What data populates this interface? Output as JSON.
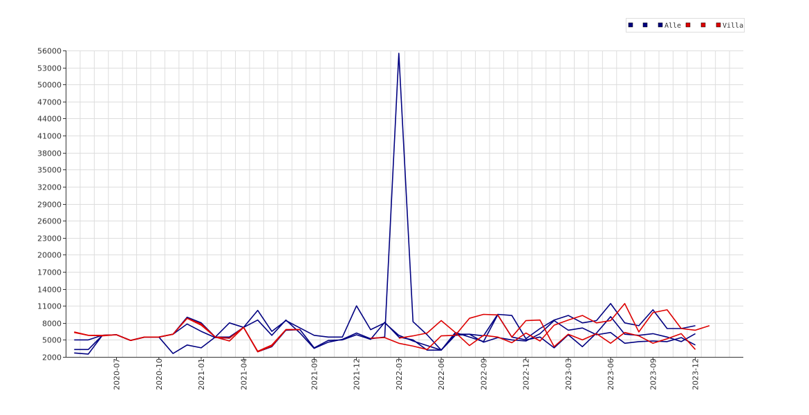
{
  "chart_data": {
    "type": "line",
    "title": "",
    "xlabel": "",
    "ylabel": "",
    "ylim": [
      2000,
      56000
    ],
    "y_ticks": [
      2000,
      5000,
      8000,
      11000,
      14000,
      17000,
      20000,
      23000,
      26000,
      29000,
      32000,
      35000,
      38000,
      41000,
      44000,
      47000,
      50000,
      53000,
      56000
    ],
    "x_start": "2020-04",
    "x_end": "2024-03",
    "x_tick_labels": [
      "2020-07",
      "2020-10",
      "2021-01",
      "2021-04",
      "2021-09",
      "2021-12",
      "2022-03",
      "2022-06",
      "2022-09",
      "2022-12",
      "2023-03",
      "2023-06",
      "2023-09",
      "2023-12"
    ],
    "grid": true,
    "legend_position": "top-right",
    "legend": [
      {
        "label": "",
        "color": "#000080"
      },
      {
        "label": "",
        "color": "#000080"
      },
      {
        "label": "Alle",
        "color": "#000080"
      },
      {
        "label": "",
        "color": "#dd0000"
      },
      {
        "label": "",
        "color": "#dd0000"
      },
      {
        "label": "Villa",
        "color": "#dd0000"
      }
    ],
    "series": [
      {
        "color": "#000080",
        "x_start": "2020-04",
        "values": [
          5000,
          5000,
          5800,
          5900,
          4900,
          5500,
          5500,
          6000,
          9000,
          8000,
          5500,
          8000,
          7200,
          10200,
          6500,
          8400,
          7100,
          5800,
          5500,
          5500,
          11000,
          6800,
          8000,
          5800,
          4800,
          4000,
          3200,
          5800,
          6000,
          5700,
          9500,
          9300,
          5200,
          7000,
          8500,
          9300,
          8000,
          8400,
          11400,
          8000,
          7500,
          10300,
          7000,
          7000,
          7500
        ]
      },
      {
        "color": "#000080",
        "x_start": "2020-04",
        "values": [
          3300,
          3300,
          5800,
          5900,
          4900,
          5500,
          5500,
          2600,
          4100,
          3600,
          5500,
          5500,
          7200,
          2900,
          3800,
          6700,
          6800,
          3600,
          4900,
          5000,
          5900,
          5100,
          8100,
          5500,
          5000,
          3200,
          3200,
          6300,
          5500,
          4700,
          9400,
          5500,
          5000,
          5500,
          3600,
          5900,
          3800,
          6200,
          9100,
          6000,
          5800,
          6100,
          5500,
          4700,
          6100
        ]
      },
      {
        "color": "#000080",
        "x_start": "2020-04",
        "values": [
          2700,
          2500,
          5800,
          5900,
          4900,
          5500,
          5500,
          6000,
          7800,
          6500,
          5400,
          5300,
          7200,
          8500,
          5800,
          8500,
          6200,
          3500,
          4600,
          5100,
          6200,
          5200,
          5500,
          55500,
          8200,
          5900,
          3200,
          6000,
          6000,
          4600,
          5400,
          5000,
          4800,
          6100,
          8400,
          6700,
          7100,
          5900,
          6300,
          4400,
          4700,
          4800,
          4700,
          5400,
          4100
        ]
      },
      {
        "color": "#dd0000",
        "x_start": "2020-04",
        "values": [
          6400,
          5800,
          5800,
          5900,
          4900,
          5500,
          5500,
          6000,
          8800,
          7800,
          5500,
          5300,
          7200,
          3000,
          4100,
          6800,
          6800
        ]
      },
      {
        "color": "#dd0000",
        "x_start": "2022-03",
        "values": [
          5300,
          5700,
          6200,
          8400,
          6300,
          4000,
          5800,
          5500,
          4500,
          6200,
          4800,
          7600,
          8500,
          9300,
          8000,
          8400,
          11400,
          6400,
          9800,
          10300,
          7000,
          6700,
          7500
        ]
      },
      {
        "color": "#dd0000",
        "x_start": "2020-04",
        "values": [
          6300,
          5800,
          5700,
          5900,
          4900,
          5500,
          5500,
          6000,
          8800,
          7600,
          5500,
          4800,
          7200,
          2900,
          3900,
          6800,
          6800,
          null,
          null,
          null,
          null,
          5300,
          5400,
          4400,
          3900,
          3300,
          5700,
          5800,
          8800,
          9500,
          9400,
          5500,
          8400,
          8500,
          3800,
          6000,
          5000,
          6100,
          4400,
          6300,
          5700,
          4400,
          5200,
          6100,
          3300
        ]
      }
    ]
  }
}
